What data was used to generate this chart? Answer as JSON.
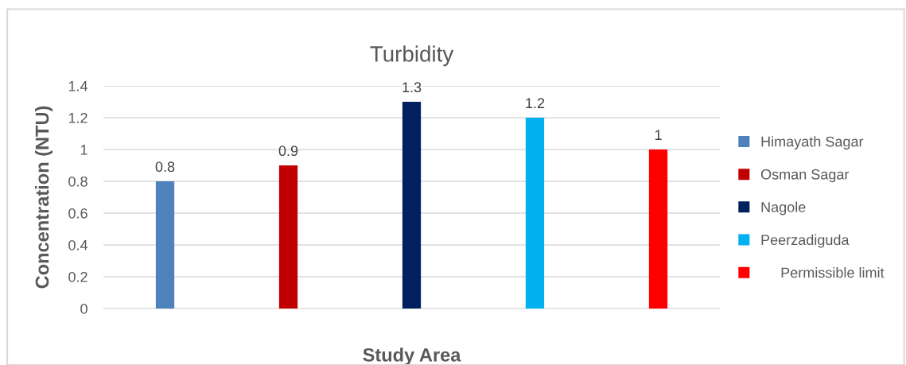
{
  "chart_data": {
    "type": "bar",
    "title": "Turbidity",
    "xlabel": "Study Area",
    "ylabel": "Concentration (NTU)",
    "categories": [
      null,
      null,
      null,
      null,
      null
    ],
    "series": [
      {
        "name": "Himayath Sagar",
        "color": "#4f81bd",
        "values": [
          0.8,
          null,
          null,
          null,
          null
        ]
      },
      {
        "name": "Osman Sagar",
        "color": "#c00000",
        "values": [
          null,
          0.9,
          null,
          null,
          null
        ]
      },
      {
        "name": "Nagole",
        "color": "#002060",
        "values": [
          null,
          null,
          1.3,
          null,
          null
        ]
      },
      {
        "name": "Peerzadiguda",
        "color": "#00b0f0",
        "values": [
          null,
          null,
          null,
          1.2,
          null
        ]
      },
      {
        "name": "     Permissible limit",
        "color": "#ff0000",
        "values": [
          null,
          null,
          null,
          null,
          1
        ]
      }
    ],
    "ylim": [
      0,
      1.4
    ],
    "yticks": [
      0,
      0.2,
      0.4,
      0.6,
      0.8,
      1,
      1.2,
      1.4
    ],
    "grid": "y",
    "legend": "right",
    "data_labels": true
  }
}
